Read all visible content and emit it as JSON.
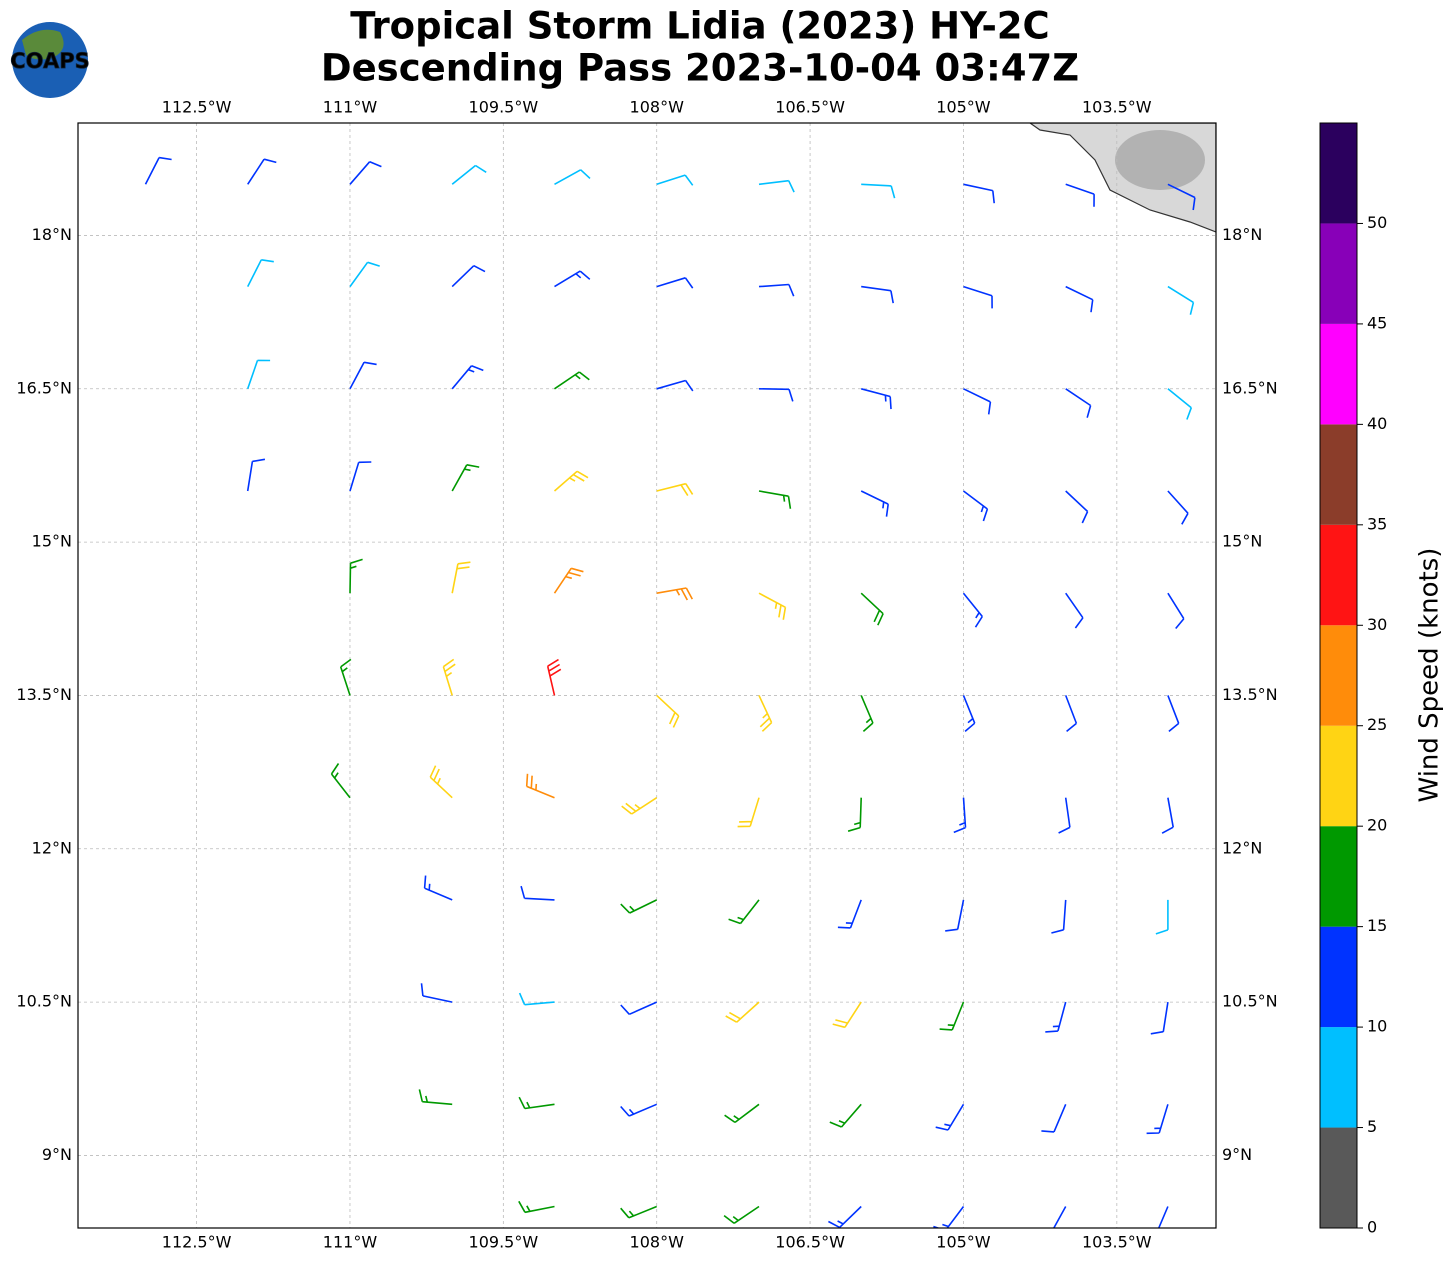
{
  "header": {
    "title_line1": "Tropical Storm Lidia (2023) HY-2C",
    "title_line2": "Descending Pass 2023-10-04 03:47Z",
    "logo_text": "COAPS"
  },
  "map": {
    "xlim": [
      -113.66,
      -102.53
    ],
    "ylim": [
      8.29,
      19.1
    ],
    "xticks": [
      {
        "value": -112.5,
        "label": "112.5°W"
      },
      {
        "value": -111,
        "label": "111°W"
      },
      {
        "value": -109.5,
        "label": "109.5°W"
      },
      {
        "value": -108,
        "label": "108°W"
      },
      {
        "value": -106.5,
        "label": "106.5°W"
      },
      {
        "value": -105,
        "label": "105°W"
      },
      {
        "value": -103.5,
        "label": "103.5°W"
      }
    ],
    "yticks": [
      {
        "value": 18,
        "label": "18°N"
      },
      {
        "value": 16.5,
        "label": "16.5°N"
      },
      {
        "value": 15,
        "label": "15°N"
      },
      {
        "value": 13.5,
        "label": "13.5°N"
      },
      {
        "value": 12,
        "label": "12°N"
      },
      {
        "value": 10.5,
        "label": "10.5°N"
      },
      {
        "value": 9,
        "label": "9°N"
      }
    ],
    "grid": true,
    "barbs": {
      "lon": [
        -113,
        -112,
        -111,
        -110,
        -109,
        -108,
        -107,
        -106,
        -105,
        -104,
        -103,
        -112,
        -111,
        -110,
        -109,
        -108,
        -107,
        -106,
        -105,
        -104,
        -103,
        -112,
        -111,
        -110,
        -109,
        -108,
        -107,
        -106,
        -105,
        -104,
        -103,
        -112,
        -111,
        -110,
        -109,
        -108,
        -107,
        -106,
        -105,
        -104,
        -103,
        -111,
        -110,
        -109,
        -108,
        -107,
        -106,
        -105,
        -104,
        -103,
        -111,
        -110,
        -109,
        -108,
        -107,
        -106,
        -105,
        -104,
        -103,
        -111,
        -110,
        -109,
        -108,
        -107,
        -106,
        -105,
        -104,
        -103,
        -110,
        -109,
        -108,
        -107,
        -106,
        -105,
        -104,
        -103,
        -110,
        -109,
        -108,
        -107,
        -106,
        -105,
        -104,
        -103,
        -110,
        -109,
        -108,
        -107,
        -106,
        -105,
        -104,
        -103,
        -109,
        -108,
        -107,
        -106,
        -105,
        -104,
        -103
      ],
      "lat": [
        18.5,
        18.5,
        18.5,
        18.5,
        18.5,
        18.5,
        18.5,
        18.5,
        18.5,
        18.5,
        18.5,
        17.5,
        17.5,
        17.5,
        17.5,
        17.5,
        17.5,
        17.5,
        17.5,
        17.5,
        17.5,
        16.5,
        16.5,
        16.5,
        16.5,
        16.5,
        16.5,
        16.5,
        16.5,
        16.5,
        16.5,
        15.5,
        15.5,
        15.5,
        15.5,
        15.5,
        15.5,
        15.5,
        15.5,
        15.5,
        15.5,
        14.5,
        14.5,
        14.5,
        14.5,
        14.5,
        14.5,
        14.5,
        14.5,
        14.5,
        13.5,
        13.5,
        13.5,
        13.5,
        13.5,
        13.5,
        13.5,
        13.5,
        13.5,
        12.5,
        12.5,
        12.5,
        12.5,
        12.5,
        12.5,
        12.5,
        12.5,
        12.5,
        11.5,
        11.5,
        11.5,
        11.5,
        11.5,
        11.5,
        11.5,
        11.5,
        10.5,
        10.5,
        10.5,
        10.5,
        10.5,
        10.5,
        10.5,
        10.5,
        9.5,
        9.5,
        9.5,
        9.5,
        9.5,
        9.5,
        9.5,
        9.5,
        8.5,
        8.5,
        8.5,
        8.5,
        8.5,
        8.5,
        8.5
      ],
      "speed": [
        12,
        12,
        11,
        9,
        8,
        8,
        8,
        9,
        11,
        12,
        12,
        9,
        9,
        12,
        13,
        11,
        12,
        11,
        12,
        12,
        9,
        9,
        12,
        13,
        16,
        12,
        12,
        13,
        12,
        11,
        8,
        12,
        12,
        16,
        23,
        22,
        17,
        13,
        13,
        12,
        12,
        17,
        22,
        27,
        26,
        23,
        18,
        13,
        12,
        11,
        16,
        23,
        32,
        20,
        24,
        17,
        13,
        12,
        11,
        17,
        23,
        26,
        23,
        21,
        16,
        13,
        12,
        12,
        13,
        12,
        16,
        17,
        13,
        12,
        11,
        9,
        12,
        8,
        12,
        22,
        22,
        16,
        13,
        12,
        17,
        16,
        13,
        17,
        16,
        13,
        12,
        13,
        17,
        16,
        17,
        13,
        13,
        12,
        13
      ],
      "direction": [
        27,
        33,
        41,
        51,
        61,
        72,
        83,
        93,
        102,
        109,
        116,
        27,
        36,
        46,
        59,
        73,
        86,
        98,
        108,
        116,
        122,
        19,
        28,
        40,
        56,
        74,
        91,
        105,
        116,
        124,
        129,
        9,
        17,
        29,
        49,
        76,
        100,
        116,
        127,
        133,
        138,
        1,
        11,
        34,
        80,
        118,
        133,
        141,
        145,
        148,
        342,
        343,
        347,
        133,
        155,
        157,
        158,
        159,
        159,
        322,
        313,
        292,
        237,
        197,
        182,
        176,
        172,
        170,
        293,
        273,
        244,
        218,
        201,
        191,
        184,
        180,
        282,
        265,
        246,
        228,
        213,
        202,
        195,
        189,
        275,
        262,
        247,
        233,
        221,
        211,
        203,
        197,
        259,
        248,
        236,
        226,
        217,
        209,
        203
      ]
    }
  },
  "colorbar": {
    "label": "Wind Speed (knots)",
    "lim": [
      0,
      55
    ],
    "ticks": [
      0,
      5,
      10,
      15,
      20,
      25,
      30,
      35,
      40,
      45,
      50
    ],
    "colors": [
      "#595959",
      "#00bfff",
      "#0033ff",
      "#009900",
      "#ffd414",
      "#ff8c0a",
      "#ff1414",
      "#8b3d2a",
      "#ff00ff",
      "#8800b8",
      "#2b005e"
    ]
  }
}
